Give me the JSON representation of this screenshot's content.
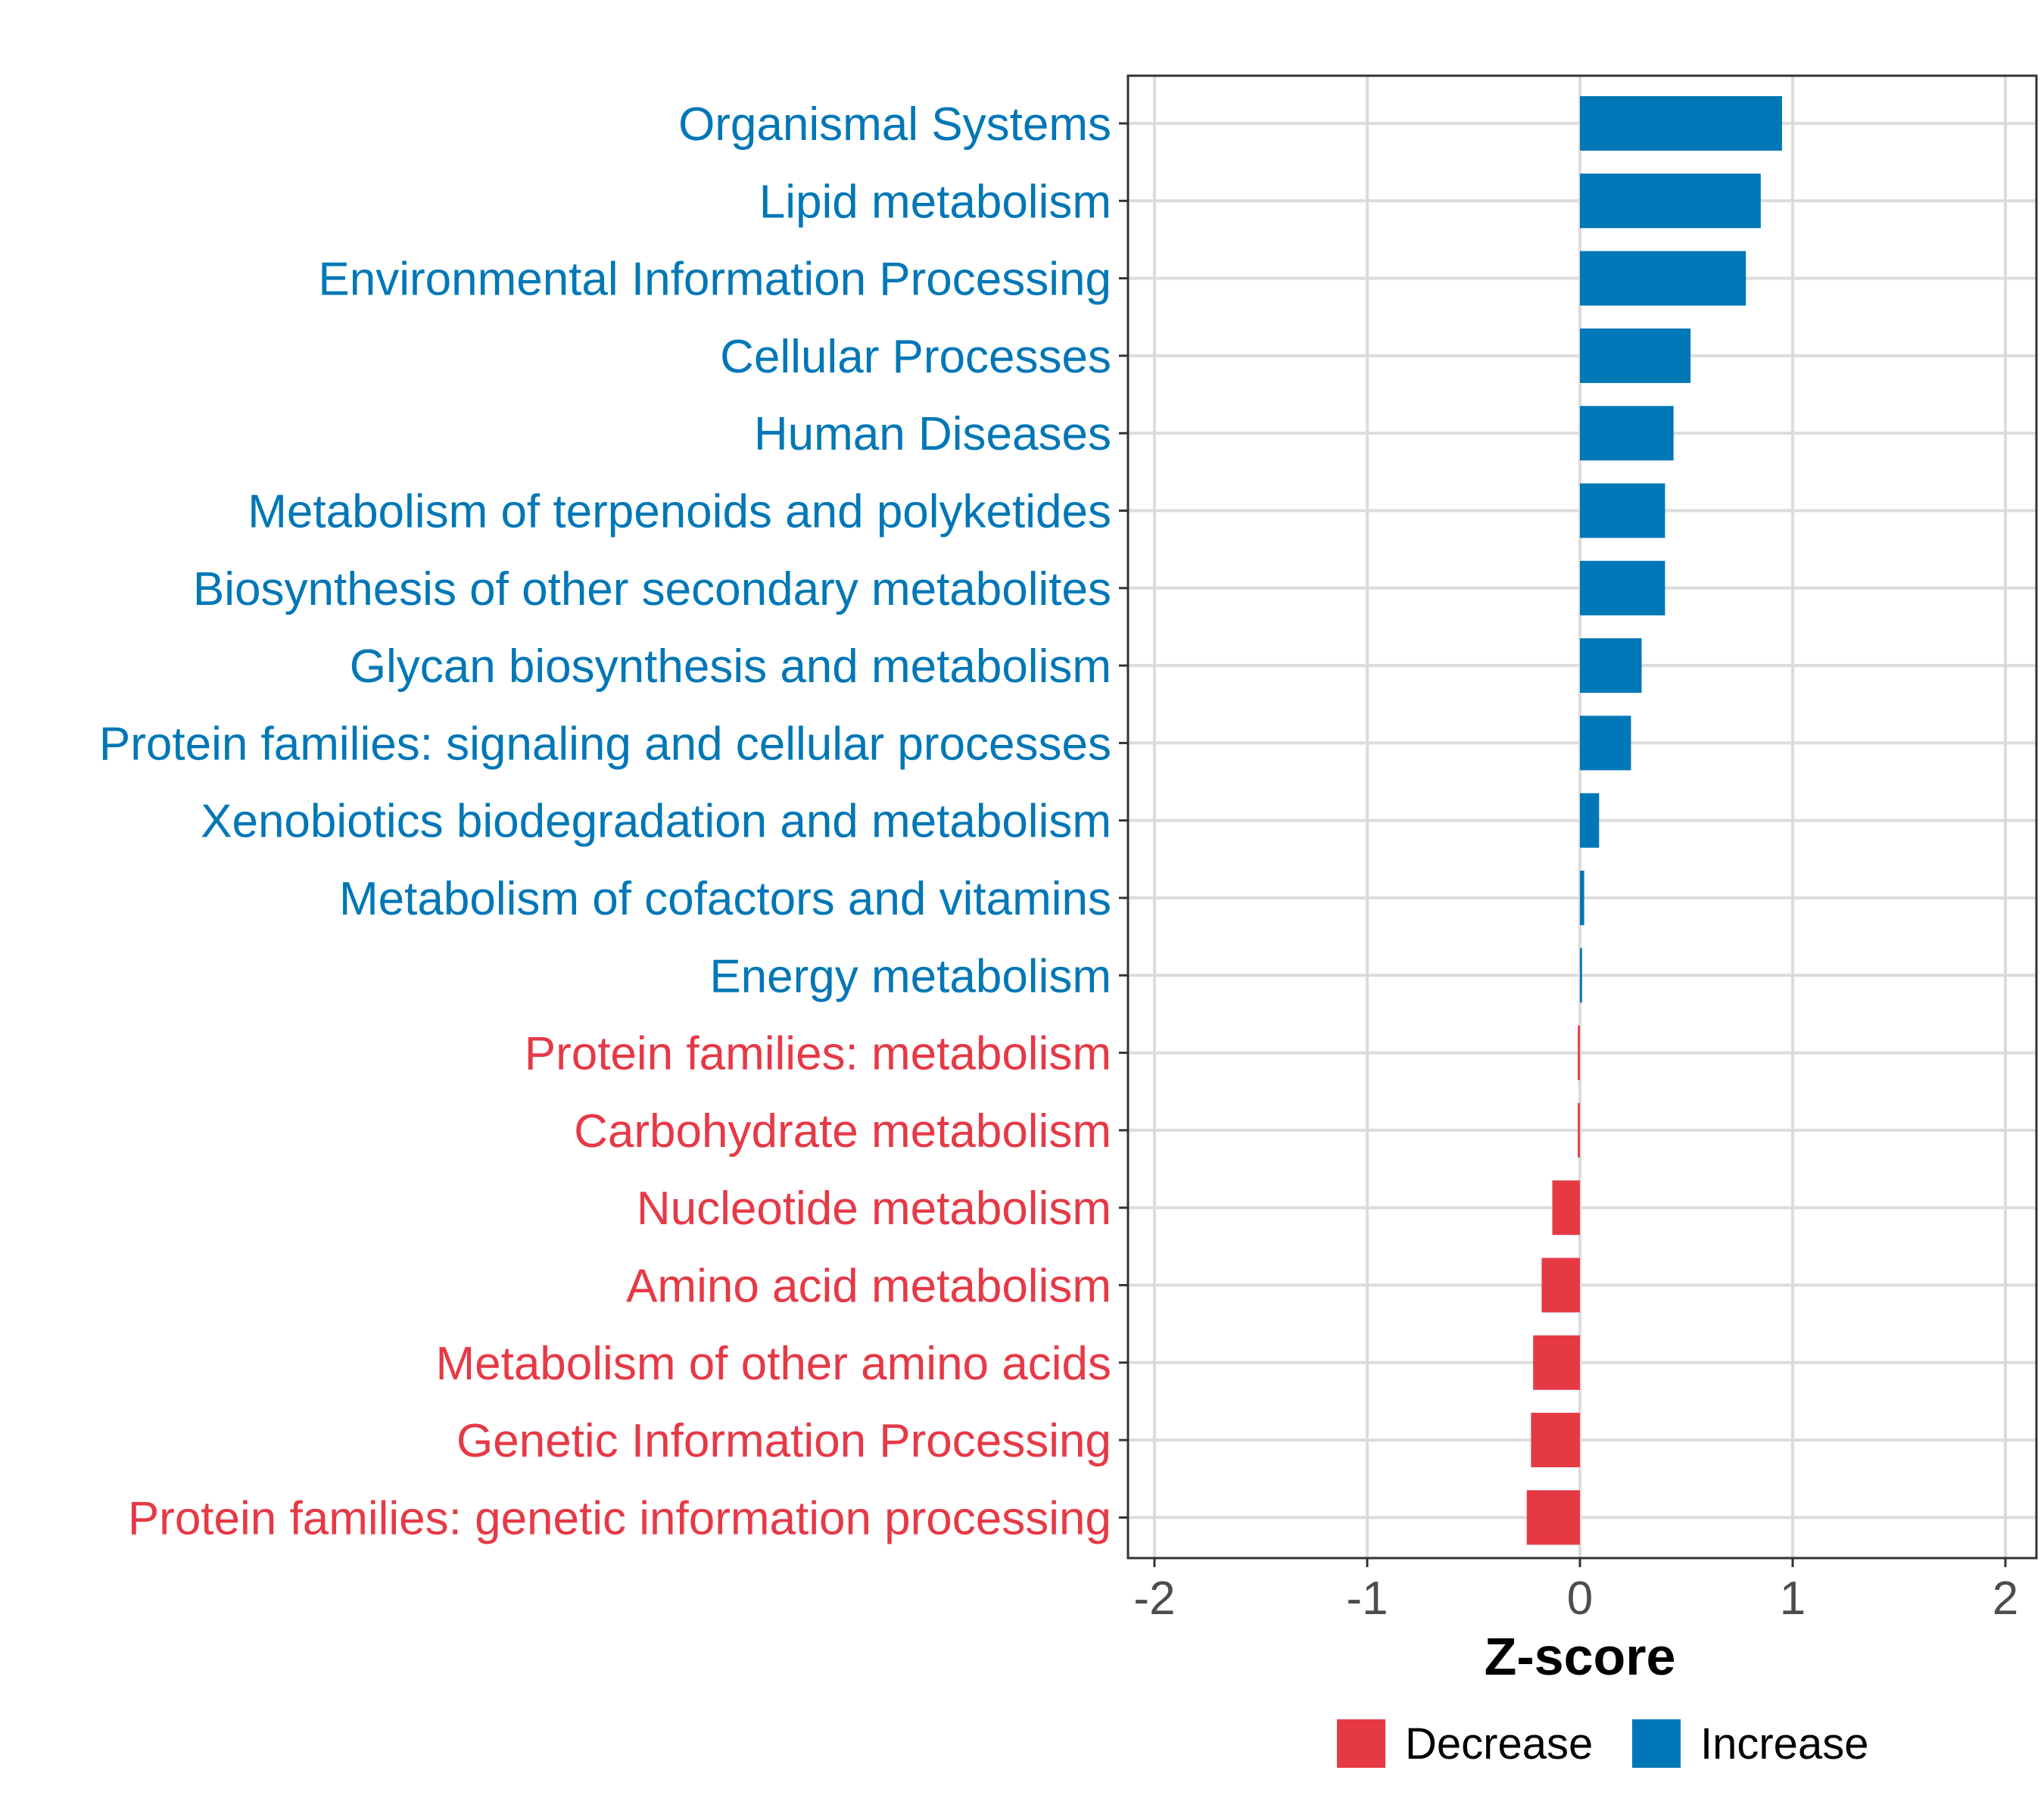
{
  "chart_data": {
    "type": "bar",
    "orientation": "horizontal",
    "title": "",
    "xlabel": "Z-score",
    "ylabel": "",
    "xlim": [
      -2.0,
      2.0
    ],
    "xticks": [
      -2,
      -1,
      0,
      1,
      2
    ],
    "xtick_labels": [
      "-2",
      "-1",
      "0",
      "1",
      "2"
    ],
    "grid": true,
    "legend_position": "bottom",
    "colors": {
      "Decrease": "#e63946",
      "Increase": "#0077b6"
    },
    "legend": [
      {
        "label": "Decrease",
        "color": "#e63946"
      },
      {
        "label": "Increase",
        "color": "#0077b6"
      }
    ],
    "bars": [
      {
        "category": "Organismal Systems",
        "value": 0.95,
        "group": "Increase"
      },
      {
        "category": "Lipid metabolism",
        "value": 0.85,
        "group": "Increase"
      },
      {
        "category": "Environmental Information Processing",
        "value": 0.78,
        "group": "Increase"
      },
      {
        "category": "Cellular Processes",
        "value": 0.52,
        "group": "Increase"
      },
      {
        "category": "Human Diseases",
        "value": 0.44,
        "group": "Increase"
      },
      {
        "category": "Metabolism of terpenoids and polyketides",
        "value": 0.4,
        "group": "Increase"
      },
      {
        "category": "Biosynthesis of other secondary metabolites",
        "value": 0.4,
        "group": "Increase"
      },
      {
        "category": "Glycan biosynthesis and metabolism",
        "value": 0.29,
        "group": "Increase"
      },
      {
        "category": "Protein families: signaling and cellular processes",
        "value": 0.24,
        "group": "Increase"
      },
      {
        "category": "Xenobiotics biodegradation and metabolism",
        "value": 0.09,
        "group": "Increase"
      },
      {
        "category": "Metabolism of cofactors and vitamins",
        "value": 0.02,
        "group": "Increase"
      },
      {
        "category": "Energy metabolism",
        "value": 0.01,
        "group": "Increase"
      },
      {
        "category": "Protein families: metabolism",
        "value": -0.01,
        "group": "Decrease"
      },
      {
        "category": "Carbohydrate metabolism",
        "value": -0.01,
        "group": "Decrease"
      },
      {
        "category": "Nucleotide metabolism",
        "value": -0.13,
        "group": "Decrease"
      },
      {
        "category": "Amino acid metabolism",
        "value": -0.18,
        "group": "Decrease"
      },
      {
        "category": "Metabolism of other amino acids",
        "value": -0.22,
        "group": "Decrease"
      },
      {
        "category": "Genetic Information Processing",
        "value": -0.23,
        "group": "Decrease"
      },
      {
        "category": "Protein families: genetic information processing",
        "value": -0.25,
        "group": "Decrease"
      }
    ]
  }
}
